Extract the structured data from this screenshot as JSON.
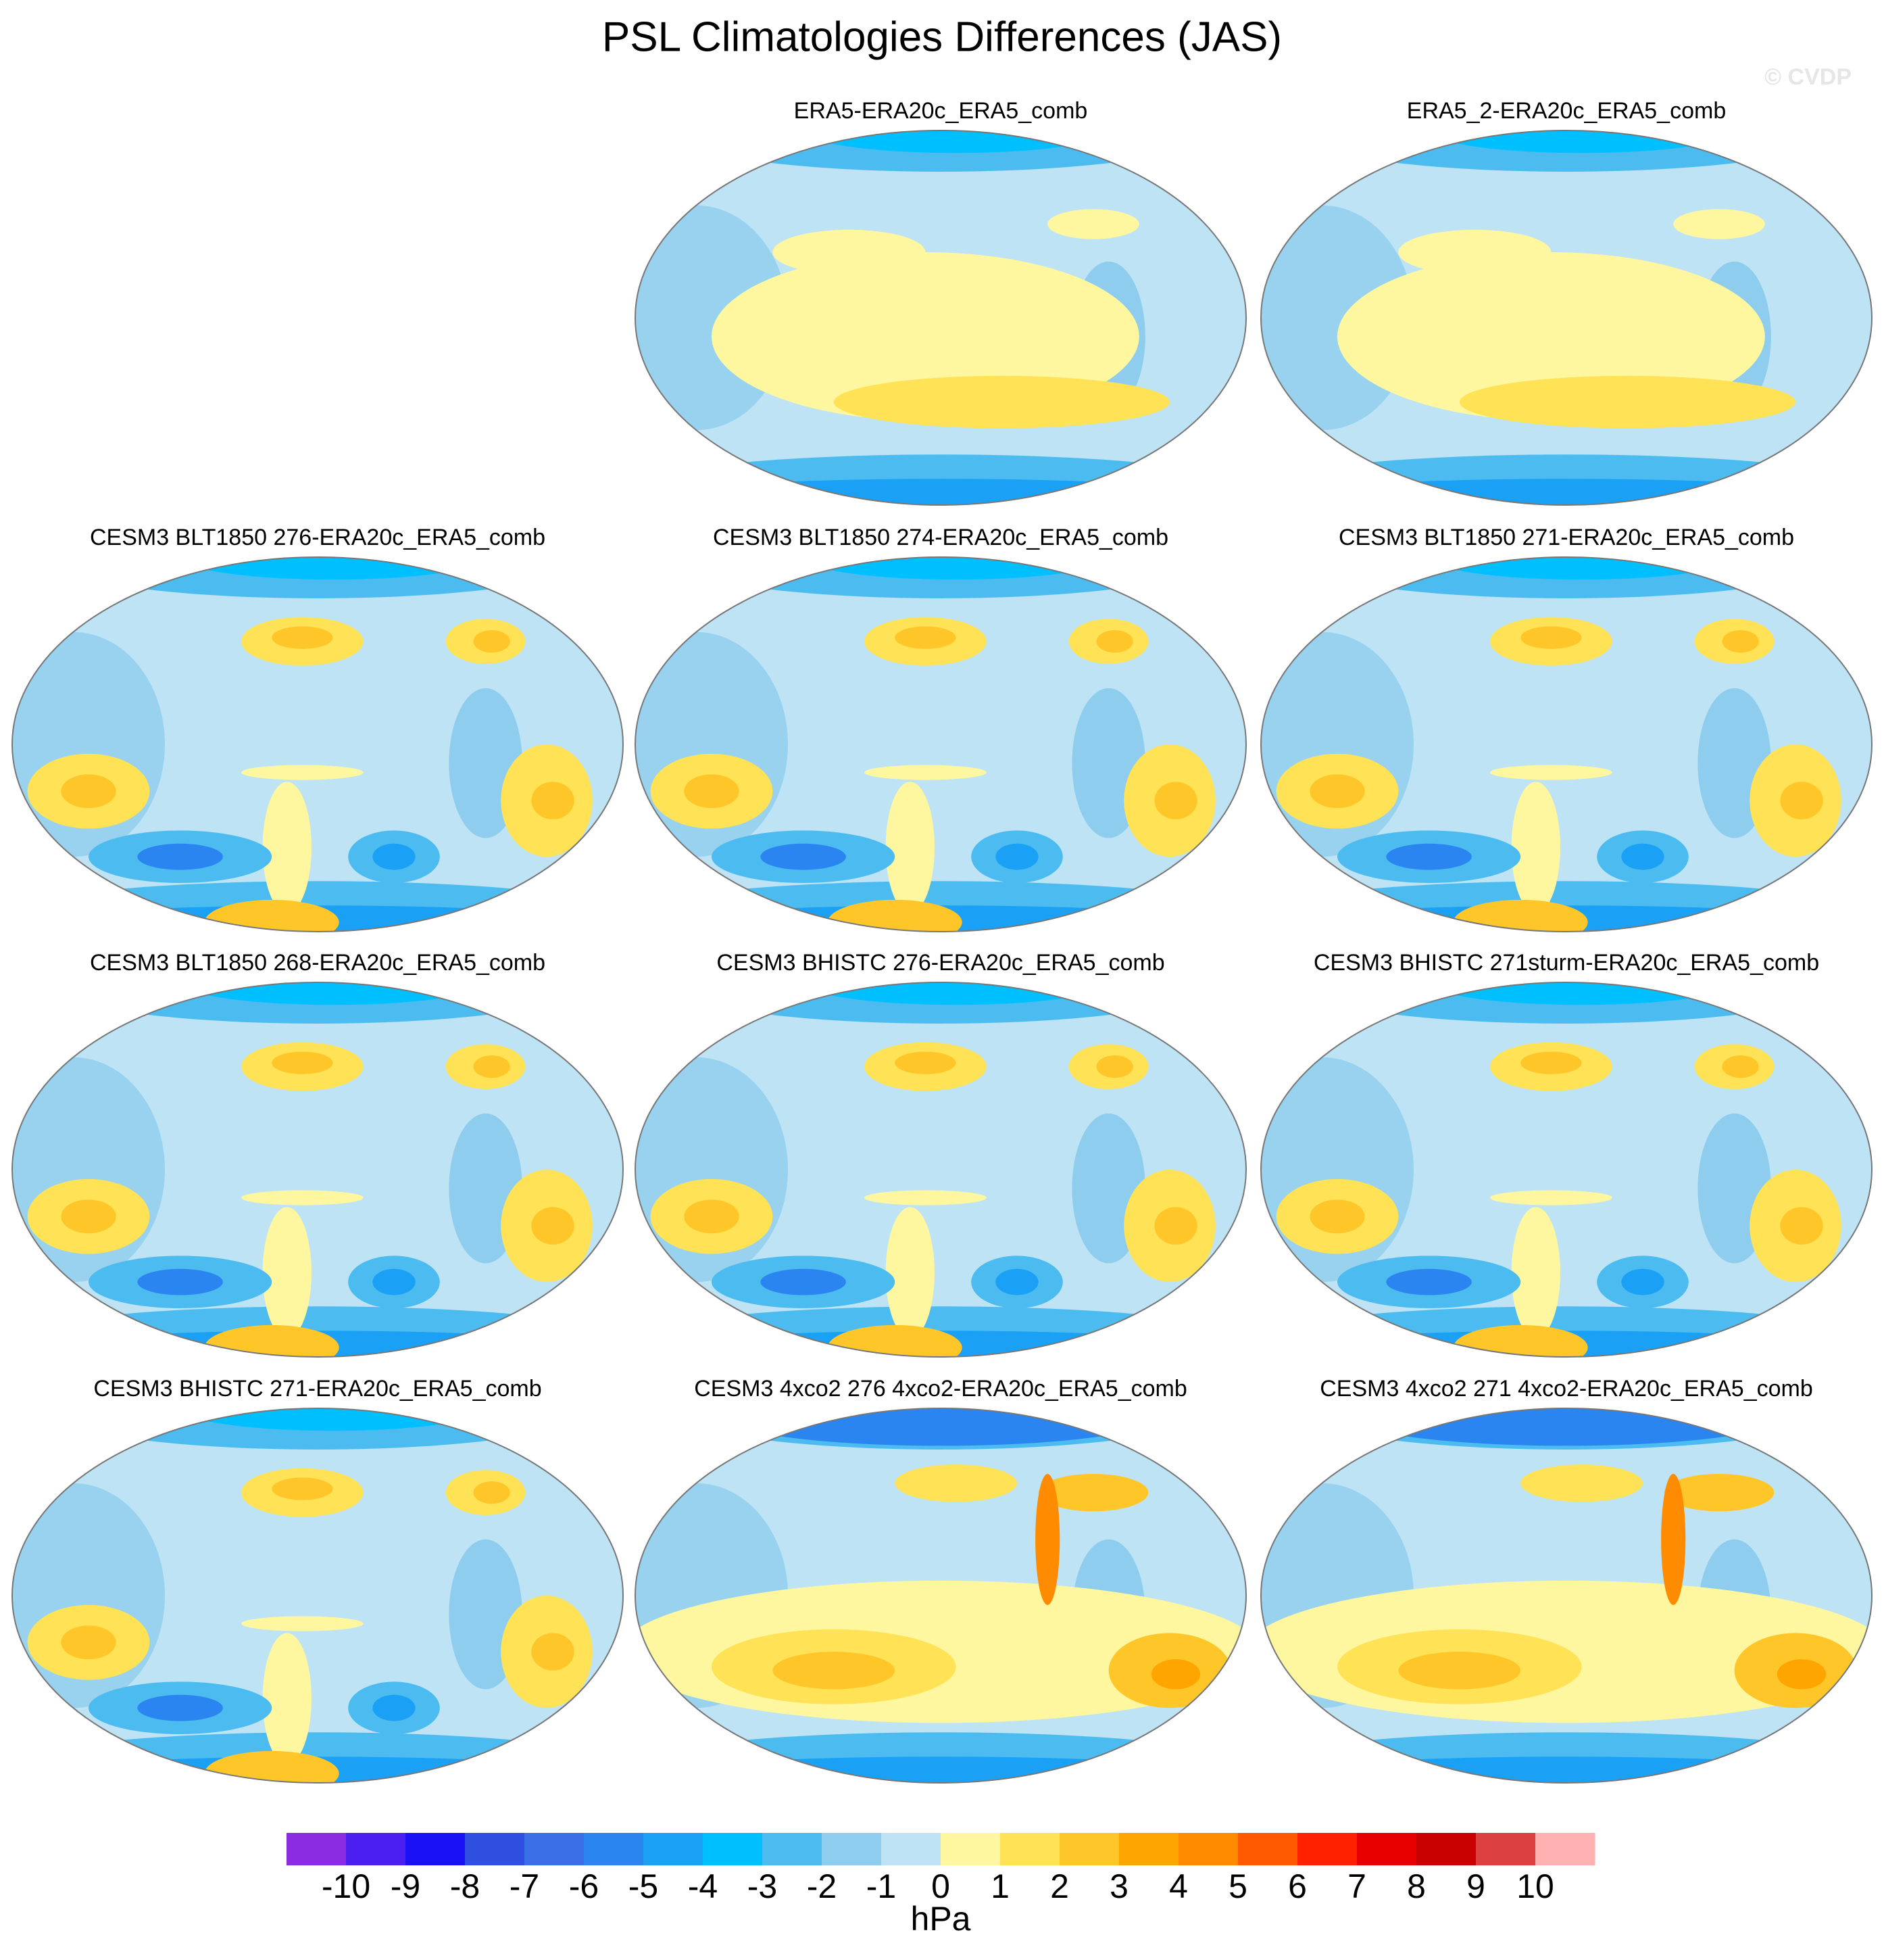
{
  "title": "PSL Climatologies Differences (JAS)",
  "watermark": "© CVDP",
  "panels": [
    {
      "title": "ERA5-ERA20c_ERA5_comb"
    },
    {
      "title": "ERA5_2-ERA20c_ERA5_comb"
    },
    {
      "title": "CESM3 BLT1850 276-ERA20c_ERA5_comb"
    },
    {
      "title": "CESM3 BLT1850 274-ERA20c_ERA5_comb"
    },
    {
      "title": "CESM3 BLT1850 271-ERA20c_ERA5_comb"
    },
    {
      "title": "CESM3 BLT1850 268-ERA20c_ERA5_comb"
    },
    {
      "title": "CESM3 BHISTC 276-ERA20c_ERA5_comb"
    },
    {
      "title": "CESM3 BHISTC 271sturm-ERA20c_ERA5_comb"
    },
    {
      "title": "CESM3 BHISTC 271-ERA20c_ERA5_comb"
    },
    {
      "title": "CESM3 4xco2 276 4xco2-ERA20c_ERA5_comb"
    },
    {
      "title": "CESM3 4xco2 271 4xco2-ERA20c_ERA5_comb"
    }
  ],
  "colorbar": {
    "levels": [
      -10,
      -9,
      -8,
      -7,
      -6,
      -5,
      -4,
      -3,
      -2,
      -1,
      0,
      1,
      2,
      3,
      4,
      5,
      6,
      7,
      8,
      9,
      10
    ],
    "colors": [
      "#8b2be2",
      "#4a1ff0",
      "#1a10f5",
      "#2e4fe0",
      "#3a6fe8",
      "#2a85f0",
      "#1aa0f5",
      "#00bfff",
      "#4cbcf0",
      "#8ecded",
      "#bee3f5",
      "#fff7a0",
      "#ffe255",
      "#ffc62a",
      "#ffa500",
      "#ff8c00",
      "#ff5a00",
      "#ff2000",
      "#e80000",
      "#c80000",
      "#dc4040",
      "#ffb0b0"
    ],
    "units": "hPa"
  }
}
